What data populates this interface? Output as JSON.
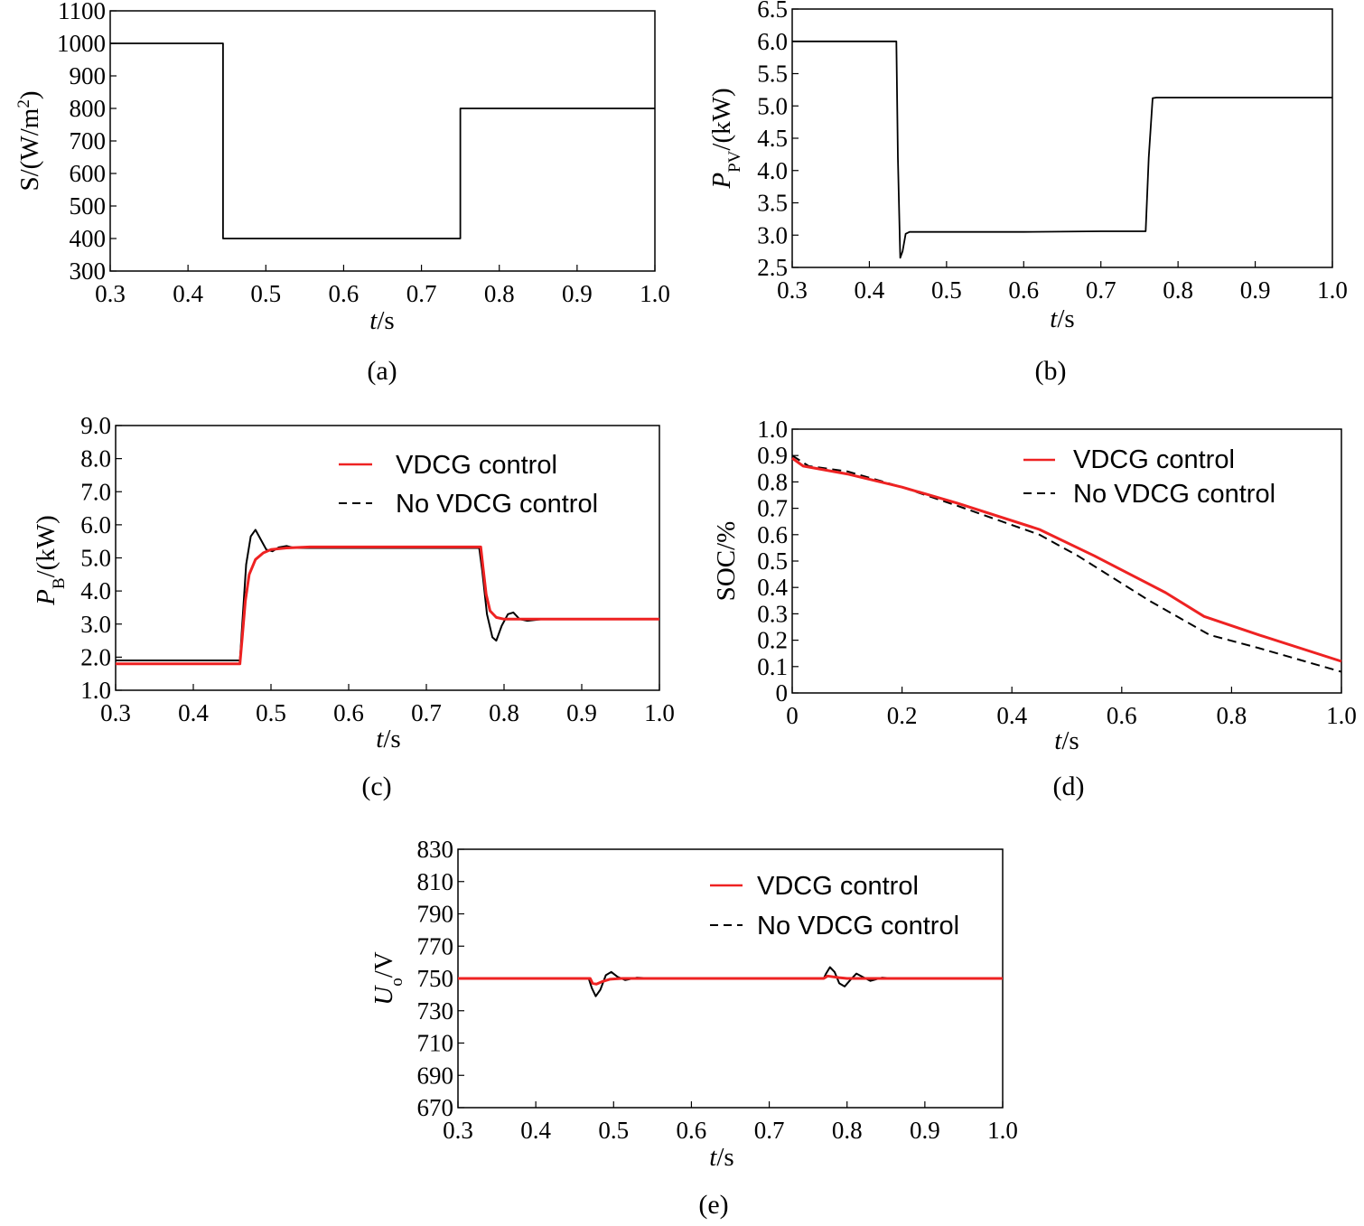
{
  "chart_data": [
    {
      "id": "a",
      "type": "line",
      "caption": "(a)",
      "xlabel": "t/s",
      "ylabel": "S/(W/m²)",
      "xlim": [
        0.3,
        1.0
      ],
      "ylim": [
        300,
        1100
      ],
      "xticks": [
        "0.3",
        "0.4",
        "0.5",
        "0.6",
        "0.7",
        "0.8",
        "0.9",
        "1.0"
      ],
      "yticks": [
        "300",
        "400",
        "500",
        "600",
        "700",
        "800",
        "900",
        "1000",
        "1100"
      ],
      "series": [
        {
          "name": "S",
          "color": "#000000",
          "style": "solid",
          "x": [
            0.3,
            0.445,
            0.445,
            0.75,
            0.75,
            1.0
          ],
          "y": [
            1000,
            1000,
            400,
            400,
            800,
            800
          ]
        }
      ]
    },
    {
      "id": "b",
      "type": "line",
      "caption": "(b)",
      "xlabel": "t/s",
      "ylabel": "PPV/(kW)",
      "xlim": [
        0.3,
        1.0
      ],
      "ylim": [
        2.5,
        6.5
      ],
      "xticks": [
        "0.3",
        "0.4",
        "0.5",
        "0.6",
        "0.7",
        "0.8",
        "0.9",
        "1.0"
      ],
      "yticks": [
        "2.5",
        "3.0",
        "3.5",
        "4.0",
        "4.5",
        "5.0",
        "5.5",
        "6.0",
        "6.5"
      ],
      "series": [
        {
          "name": "PPV",
          "color": "#000000",
          "style": "solid",
          "x": [
            0.3,
            0.435,
            0.437,
            0.44,
            0.443,
            0.447,
            0.452,
            0.46,
            0.5,
            0.6,
            0.7,
            0.758,
            0.762,
            0.767,
            0.772,
            0.8,
            0.9,
            1.0
          ],
          "y": [
            6.0,
            6.0,
            4.2,
            2.65,
            2.75,
            3.02,
            3.05,
            3.05,
            3.05,
            3.05,
            3.06,
            3.06,
            4.2,
            5.12,
            5.13,
            5.13,
            5.13,
            5.13
          ]
        }
      ]
    },
    {
      "id": "c",
      "type": "line",
      "caption": "(c)",
      "xlabel": "t/s",
      "ylabel": "PB/(kW)",
      "xlim": [
        0.3,
        1.0
      ],
      "ylim": [
        1.0,
        9.0
      ],
      "xticks": [
        "0.3",
        "0.4",
        "0.5",
        "0.6",
        "0.7",
        "0.8",
        "0.9",
        "1.0"
      ],
      "yticks": [
        "1.0",
        "2.0",
        "3.0",
        "4.0",
        "5.0",
        "6.0",
        "7.0",
        "8.0",
        "9.0"
      ],
      "legend": [
        "VDCG control",
        "No VDCG control"
      ],
      "series": [
        {
          "name": "VDCG control",
          "color": "#ee2222",
          "style": "solid",
          "x": [
            0.3,
            0.46,
            0.463,
            0.467,
            0.472,
            0.48,
            0.49,
            0.5,
            0.52,
            0.55,
            0.6,
            0.7,
            0.77,
            0.773,
            0.777,
            0.782,
            0.79,
            0.8,
            0.85,
            0.9,
            1.0
          ],
          "y": [
            1.8,
            1.8,
            2.6,
            3.7,
            4.5,
            4.95,
            5.15,
            5.25,
            5.3,
            5.33,
            5.33,
            5.33,
            5.33,
            4.7,
            3.9,
            3.4,
            3.2,
            3.15,
            3.15,
            3.15,
            3.15
          ]
        },
        {
          "name": "No VDCG control",
          "color": "#000000",
          "style": "dashed",
          "x": [
            0.3,
            0.46,
            0.463,
            0.468,
            0.474,
            0.48,
            0.487,
            0.494,
            0.502,
            0.51,
            0.52,
            0.53,
            0.55,
            0.6,
            0.7,
            0.768,
            0.772,
            0.778,
            0.785,
            0.79,
            0.797,
            0.805,
            0.812,
            0.82,
            0.83,
            0.85,
            0.9,
            1.0
          ],
          "y": [
            1.9,
            1.9,
            3.0,
            4.8,
            5.65,
            5.85,
            5.55,
            5.25,
            5.2,
            5.32,
            5.36,
            5.3,
            5.3,
            5.3,
            5.3,
            5.3,
            4.6,
            3.3,
            2.6,
            2.5,
            2.95,
            3.3,
            3.35,
            3.15,
            3.1,
            3.15,
            3.15,
            3.15
          ]
        }
      ]
    },
    {
      "id": "d",
      "type": "line",
      "caption": "(d)",
      "xlabel": "t/s",
      "ylabel": "SOC/%",
      "xlim": [
        0,
        1.0
      ],
      "ylim": [
        0,
        1.0
      ],
      "xticks": [
        "0",
        "0.2",
        "0.4",
        "0.6",
        "0.8",
        "1.0"
      ],
      "yticks": [
        "0",
        "0.1",
        "0.2",
        "0.3",
        "0.4",
        "0.5",
        "0.6",
        "0.7",
        "0.8",
        "0.9",
        "1.0"
      ],
      "legend": [
        "VDCG control",
        "No VDCG control"
      ],
      "series": [
        {
          "name": "VDCG control",
          "color": "#ee2222",
          "style": "solid",
          "x": [
            0,
            0.02,
            0.1,
            0.2,
            0.3,
            0.45,
            0.55,
            0.68,
            0.75,
            0.85,
            1.0
          ],
          "y": [
            0.89,
            0.86,
            0.83,
            0.78,
            0.72,
            0.62,
            0.52,
            0.38,
            0.29,
            0.22,
            0.12
          ]
        },
        {
          "name": "No VDCG control",
          "color": "#000000",
          "style": "dashed",
          "x": [
            0,
            0.03,
            0.1,
            0.2,
            0.3,
            0.45,
            0.52,
            0.65,
            0.76,
            0.85,
            1.0
          ],
          "y": [
            0.9,
            0.86,
            0.84,
            0.78,
            0.71,
            0.6,
            0.52,
            0.35,
            0.22,
            0.17,
            0.08
          ]
        }
      ]
    },
    {
      "id": "e",
      "type": "line",
      "caption": "(e)",
      "xlabel": "t/s",
      "ylabel": "Uo/V",
      "xlim": [
        0.3,
        1.0
      ],
      "ylim": [
        670,
        830
      ],
      "xticks": [
        "0.3",
        "0.4",
        "0.5",
        "0.6",
        "0.7",
        "0.8",
        "0.9",
        "1.0"
      ],
      "yticks": [
        "670",
        "690",
        "710",
        "730",
        "750",
        "770",
        "790",
        "810",
        "830"
      ],
      "legend": [
        "VDCG control",
        "No VDCG control"
      ],
      "series": [
        {
          "name": "VDCG control",
          "color": "#ee2222",
          "style": "solid",
          "x": [
            0.3,
            0.47,
            0.473,
            0.478,
            0.485,
            0.495,
            0.51,
            0.6,
            0.7,
            0.77,
            0.775,
            0.782,
            0.79,
            0.8,
            0.9,
            1.0
          ],
          "y": [
            750,
            750,
            747,
            746.5,
            748,
            749.5,
            750,
            750,
            750,
            750,
            751.5,
            751,
            750.5,
            750,
            750,
            750
          ]
        },
        {
          "name": "No VDCG control",
          "color": "#000000",
          "style": "dashed",
          "x": [
            0.3,
            0.468,
            0.472,
            0.477,
            0.483,
            0.49,
            0.497,
            0.505,
            0.515,
            0.53,
            0.55,
            0.6,
            0.7,
            0.77,
            0.773,
            0.778,
            0.784,
            0.79,
            0.797,
            0.804,
            0.812,
            0.82,
            0.83,
            0.845,
            0.86,
            0.9,
            1.0
          ],
          "y": [
            750,
            750,
            744,
            739,
            743,
            752,
            754,
            751,
            749,
            750.5,
            750,
            750,
            750,
            750,
            753,
            757,
            754,
            747,
            745,
            749,
            753,
            751,
            748.5,
            750.5,
            750,
            750,
            750
          ]
        }
      ]
    }
  ]
}
